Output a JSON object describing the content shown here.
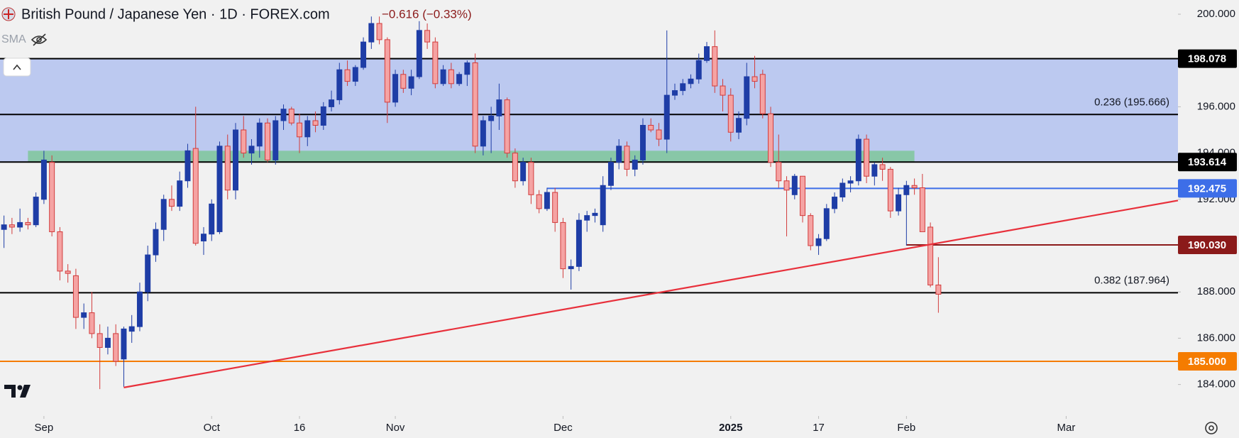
{
  "chart_data": {
    "type": "candlestick",
    "title": "British Pound / Japanese Yen · 1D · FOREX.com",
    "change": "−0.616 (−0.33%)",
    "indicator": "SMA",
    "up_color": "#1e3da6",
    "down_color": "#f5a3a3",
    "down_edge_color": "#d23c3c",
    "open": [
      190.7,
      190.9,
      190.8,
      191.0,
      190.9,
      192.0,
      193.6,
      190.6,
      188.9,
      188.7,
      186.9,
      187.1,
      186.2,
      185.6,
      186.2,
      185.1,
      186.3,
      186.5,
      188.0,
      189.6,
      190.7,
      192.0,
      191.7,
      192.8,
      194.2,
      190.2,
      190.5,
      190.6,
      194.3,
      192.4,
      195.0,
      194.0,
      194.3,
      195.3,
      193.7,
      195.4,
      195.9,
      195.3,
      194.7,
      195.4,
      195.2,
      196.0,
      196.3,
      197.6,
      197.1,
      197.7,
      198.8,
      199.6,
      198.9,
      196.2,
      197.4,
      196.8,
      197.3,
      199.3,
      198.8,
      197.0,
      197.6,
      197.0,
      197.4,
      197.9,
      194.3,
      195.4,
      195.6,
      196.3,
      194.0,
      192.8,
      193.6,
      192.2,
      191.6,
      192.3,
      191.0,
      189.0,
      189.1,
      191.1,
      191.3,
      190.9,
      192.6,
      193.6,
      194.3,
      193.3,
      193.7,
      195.2,
      195.0,
      194.6,
      196.5,
      196.7,
      197.0,
      197.2,
      198.0,
      198.6,
      196.9,
      196.5,
      194.9,
      195.5,
      197.3,
      197.4,
      195.7,
      193.6,
      192.8,
      192.2,
      193.0,
      191.3,
      190.0,
      190.3,
      191.6,
      192.1,
      192.7,
      192.8,
      194.6,
      193.0,
      193.5,
      193.3,
      191.5,
      192.2,
      192.6,
      192.5,
      190.8,
      188.3
    ],
    "high": [
      191.3,
      191.2,
      191.6,
      191.2,
      192.3,
      194.1,
      193.9,
      190.8,
      189.2,
      189.0,
      187.5,
      188.0,
      186.6,
      186.5,
      186.6,
      186.5,
      187.0,
      188.4,
      190.0,
      191.0,
      192.2,
      192.6,
      193.2,
      194.4,
      196.0,
      190.8,
      192.0,
      194.5,
      194.8,
      195.3,
      195.6,
      194.6,
      195.5,
      195.5,
      195.6,
      196.1,
      196.0,
      195.7,
      195.6,
      195.8,
      196.2,
      196.7,
      197.9,
      198.0,
      197.8,
      199.0,
      199.9,
      199.9,
      199.0,
      197.6,
      197.6,
      197.6,
      199.7,
      199.6,
      199.0,
      197.8,
      197.9,
      197.5,
      198.0,
      198.3,
      195.6,
      196.0,
      197.0,
      196.4,
      194.2,
      193.8,
      193.8,
      192.4,
      192.5,
      192.5,
      191.2,
      189.4,
      191.4,
      191.5,
      191.6,
      193.0,
      193.8,
      194.6,
      194.5,
      193.9,
      195.5,
      195.5,
      195.3,
      199.3,
      197.0,
      197.2,
      197.4,
      198.3,
      198.8,
      199.3,
      197.2,
      196.8,
      195.8,
      197.9,
      198.2,
      197.6,
      196.0,
      194.8,
      193.0,
      193.1,
      193.0,
      191.4,
      190.5,
      191.8,
      192.3,
      192.9,
      193.0,
      194.8,
      194.8,
      193.6,
      193.8,
      193.4,
      192.5,
      192.8,
      192.9,
      193.1,
      191.0,
      189.5
    ],
    "low": [
      189.9,
      190.5,
      190.6,
      190.7,
      190.8,
      191.8,
      190.4,
      188.5,
      188.4,
      186.4,
      186.4,
      186.0,
      183.8,
      185.3,
      184.8,
      183.9,
      185.8,
      186.3,
      187.6,
      189.3,
      190.2,
      191.5,
      191.5,
      192.5,
      190.0,
      189.6,
      190.2,
      190.5,
      192.0,
      192.0,
      193.8,
      193.5,
      193.8,
      193.6,
      193.5,
      195.0,
      195.2,
      194.0,
      194.3,
      194.9,
      195.0,
      195.8,
      196.1,
      196.9,
      196.9,
      197.6,
      198.5,
      198.7,
      195.3,
      196.0,
      196.6,
      196.5,
      197.2,
      198.5,
      196.8,
      196.9,
      196.8,
      196.9,
      196.9,
      194.0,
      193.9,
      194.0,
      195.0,
      193.8,
      192.5,
      192.6,
      191.8,
      191.4,
      191.5,
      190.6,
      188.6,
      188.1,
      188.9,
      190.6,
      191.0,
      190.6,
      192.4,
      193.3,
      193.0,
      193.0,
      193.5,
      194.9,
      194.3,
      194.0,
      196.3,
      196.5,
      196.8,
      197.0,
      197.9,
      196.6,
      195.8,
      194.5,
      194.6,
      195.2,
      196.8,
      195.5,
      193.4,
      192.5,
      190.4,
      192.0,
      191.0,
      189.8,
      189.6,
      190.2,
      191.4,
      191.9,
      192.3,
      192.6,
      192.7,
      192.6,
      192.8,
      191.2,
      191.3,
      190.0,
      192.2,
      190.6,
      188.2,
      187.1
    ],
    "close": [
      190.9,
      190.8,
      191.0,
      190.9,
      192.1,
      193.7,
      190.6,
      188.9,
      188.8,
      186.9,
      187.1,
      186.2,
      185.6,
      186.0,
      185.0,
      186.4,
      186.5,
      188.0,
      189.6,
      190.7,
      192.0,
      191.7,
      192.8,
      194.1,
      190.1,
      190.5,
      191.8,
      194.3,
      192.4,
      195.0,
      194.0,
      194.3,
      195.3,
      193.7,
      195.4,
      195.9,
      195.3,
      194.7,
      195.4,
      195.2,
      196.0,
      196.3,
      197.6,
      197.1,
      197.7,
      198.8,
      199.6,
      198.9,
      196.2,
      197.4,
      196.8,
      197.3,
      199.3,
      198.8,
      197.0,
      197.6,
      197.0,
      197.4,
      197.9,
      194.3,
      195.4,
      195.6,
      196.3,
      194.0,
      192.8,
      193.6,
      192.2,
      191.6,
      192.3,
      191.0,
      189.0,
      189.1,
      191.1,
      191.3,
      191.4,
      192.6,
      193.6,
      194.3,
      193.3,
      193.7,
      195.2,
      195.0,
      194.6,
      196.5,
      196.7,
      197.0,
      197.2,
      198.0,
      198.6,
      196.9,
      196.5,
      194.9,
      195.5,
      197.3,
      197.1,
      195.7,
      193.6,
      192.8,
      192.4,
      193.0,
      191.3,
      190.0,
      190.3,
      191.6,
      192.1,
      192.7,
      192.8,
      194.6,
      193.0,
      193.5,
      193.3,
      191.5,
      192.2,
      192.6,
      192.5,
      190.6,
      188.3,
      187.9
    ],
    "xlim": [
      -0.5,
      147
    ],
    "xticks": [
      {
        "value": 5,
        "label": "Sep"
      },
      {
        "value": 26,
        "label": "Oct"
      },
      {
        "value": 37,
        "label": "16"
      },
      {
        "value": 49,
        "label": "Nov"
      },
      {
        "value": 70,
        "label": "Dec"
      },
      {
        "value": 91,
        "label": "2025"
      },
      {
        "value": 102,
        "label": "17"
      },
      {
        "value": 113,
        "label": "Feb"
      },
      {
        "value": 133,
        "label": "Mar"
      }
    ],
    "ylim": [
      182.7,
      200.614
    ],
    "yticks": [
      {
        "value": 200,
        "label": "200.000"
      },
      {
        "value": 196,
        "label": "196.000"
      },
      {
        "value": 194,
        "label": "194.000"
      },
      {
        "value": 192,
        "label": "192.000"
      },
      {
        "value": 188,
        "label": "188.000"
      },
      {
        "value": 186,
        "label": "186.000"
      },
      {
        "value": 184,
        "label": "184.000"
      }
    ],
    "zones": [
      {
        "range": [
          193.614,
          198.078
        ],
        "color": "#6f8ff0"
      },
      {
        "range": [
          193.6,
          194.1
        ],
        "xrange": [
          3,
          114
        ],
        "color": "#7fc79a"
      }
    ],
    "levels": [
      {
        "value": 198.078,
        "label": "198.078",
        "color": "#000000"
      },
      {
        "value": 195.666,
        "color": "#000000"
      },
      {
        "value": 193.614,
        "label": "193.614",
        "color": "#000000"
      },
      {
        "value": 192.475,
        "label": "192.475",
        "color": "#3d6ee8",
        "from": 68
      },
      {
        "value": 190.03,
        "label": "190.030",
        "color": "#8b1a1a",
        "from": 113
      },
      {
        "value": 187.964,
        "color": "#000000"
      },
      {
        "value": 185.0,
        "label": "185.000",
        "color": "#f57c00"
      }
    ],
    "fib_labels": [
      {
        "value": 195.666,
        "label": "0.236 (195.666)"
      },
      {
        "value": 187.964,
        "label": "0.382 (187.964)"
      }
    ],
    "trendline": {
      "x": [
        15,
        147
      ],
      "y": [
        183.87,
        191.95
      ],
      "color": "#e8303b"
    }
  }
}
